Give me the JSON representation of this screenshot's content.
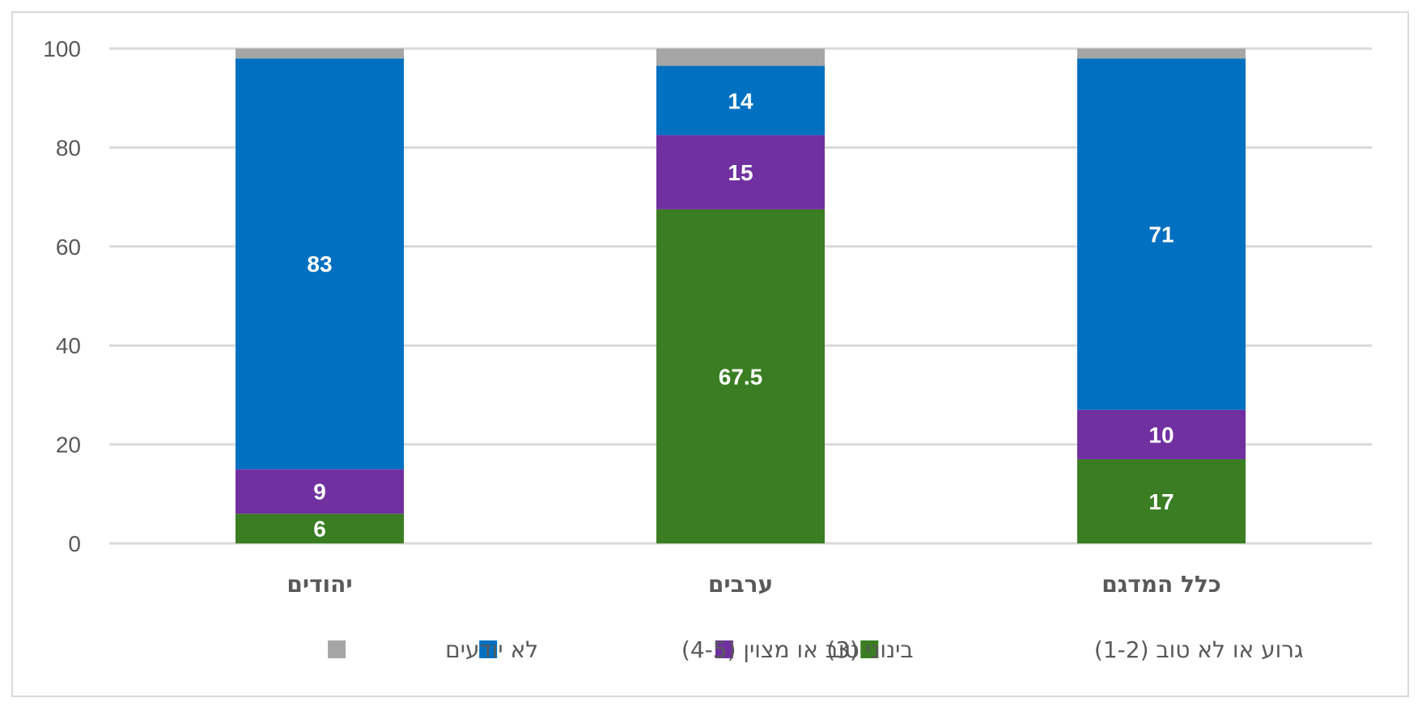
{
  "chart_data": {
    "type": "bar",
    "stacked": true,
    "categories": [
      "יהודים",
      "ערבים",
      "כלל המדגם"
    ],
    "series": [
      {
        "name": "גרוע או לא טוב (1-2)",
        "values": [
          6,
          67.5,
          17
        ],
        "color": "#3a7d22",
        "labels": [
          "6",
          "67.5",
          "17"
        ]
      },
      {
        "name": "בינוני (3)",
        "values": [
          9,
          15,
          10
        ],
        "color": "#7030a0",
        "labels": [
          "9",
          "15",
          "10"
        ]
      },
      {
        "name": "טוב או מצוין (4-5)",
        "values": [
          83,
          14,
          71
        ],
        "color": "#0070c0",
        "labels": [
          "83",
          "14",
          "71"
        ]
      },
      {
        "name": "לא יודעים",
        "values": [
          2,
          3.5,
          2
        ],
        "color": "#a6a6a6",
        "labels": [
          "",
          "",
          ""
        ]
      }
    ],
    "ylim": [
      0,
      100
    ],
    "yticks": [
      "0",
      "20",
      "40",
      "60",
      "80",
      "100"
    ],
    "grid": true,
    "legend_position": "bottom",
    "gridline_color": "#d9d9d9"
  }
}
